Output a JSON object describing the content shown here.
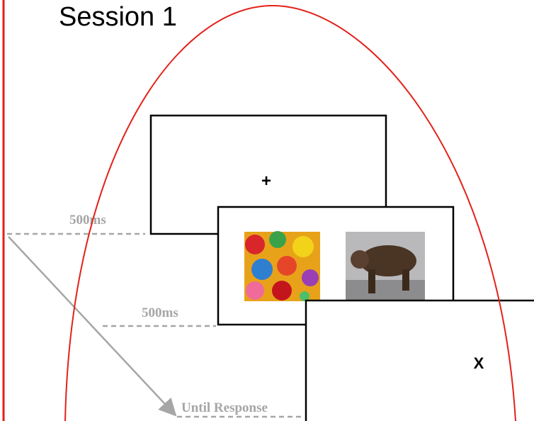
{
  "title": "Session 1",
  "screens": [
    {
      "symbol": "+",
      "duration": "500ms"
    },
    {
      "duration": "500ms"
    },
    {
      "symbol": "X",
      "duration": "Until Response"
    }
  ]
}
